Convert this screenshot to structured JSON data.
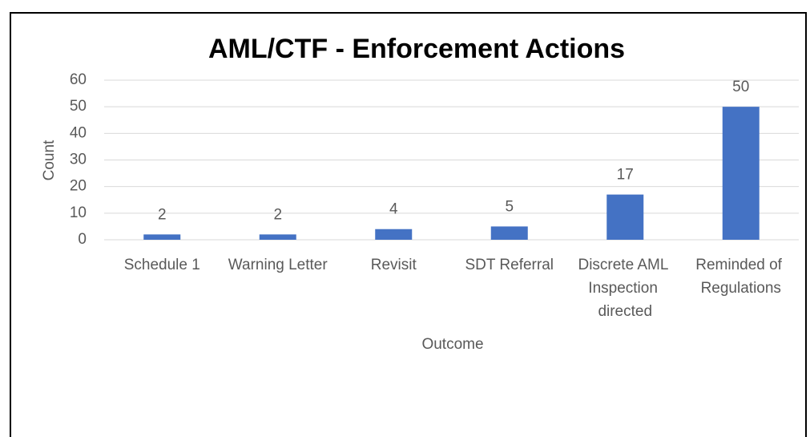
{
  "chart_data": {
    "type": "bar",
    "title": "AML/CTF - Enforcement Actions",
    "x_label": "Outcome",
    "y_label": "Count",
    "categories": [
      "Schedule 1",
      "Warning Letter",
      "Revisit",
      "SDT Referral",
      "Discrete AML Inspection directed",
      "Reminded of Regulations"
    ],
    "values": [
      2,
      2,
      4,
      5,
      17,
      50
    ],
    "color": "#4472c4",
    "ylim": [
      0,
      60
    ],
    "yticks": [
      0,
      10,
      20,
      30,
      40,
      50,
      60
    ],
    "grid": true
  }
}
